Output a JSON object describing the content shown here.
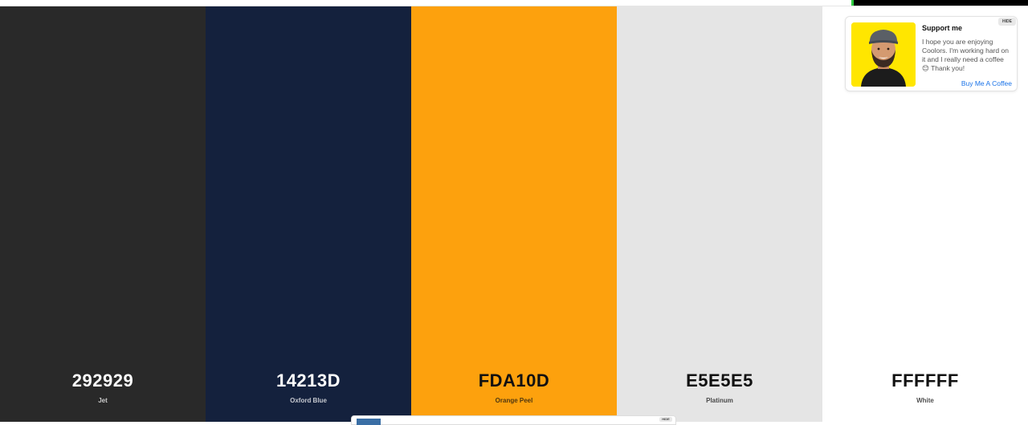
{
  "palette": {
    "colors": [
      {
        "hex": "292929",
        "name": "Jet",
        "color": "#292929",
        "text_color": "#ffffff"
      },
      {
        "hex": "14213D",
        "name": "Oxford Blue",
        "color": "#14213D",
        "text_color": "#ffffff"
      },
      {
        "hex": "FDA10D",
        "name": "Orange Peel",
        "color": "#FDA10D",
        "text_color": "#111111"
      },
      {
        "hex": "E5E5E5",
        "name": "Platinum",
        "color": "#E5E5E5",
        "text_color": "#111111"
      },
      {
        "hex": "FFFFFF",
        "name": "White",
        "color": "#FFFFFF",
        "text_color": "#111111"
      }
    ]
  },
  "support": {
    "title": "Support me",
    "text": "I hope you are enjoying Coolors. I'm working hard on it and I really need a coffee 😊 Thank you!",
    "link": "Buy Me A Coffee",
    "hide": "HIDE"
  },
  "bottom_ad": {
    "hide": "HIDE"
  }
}
